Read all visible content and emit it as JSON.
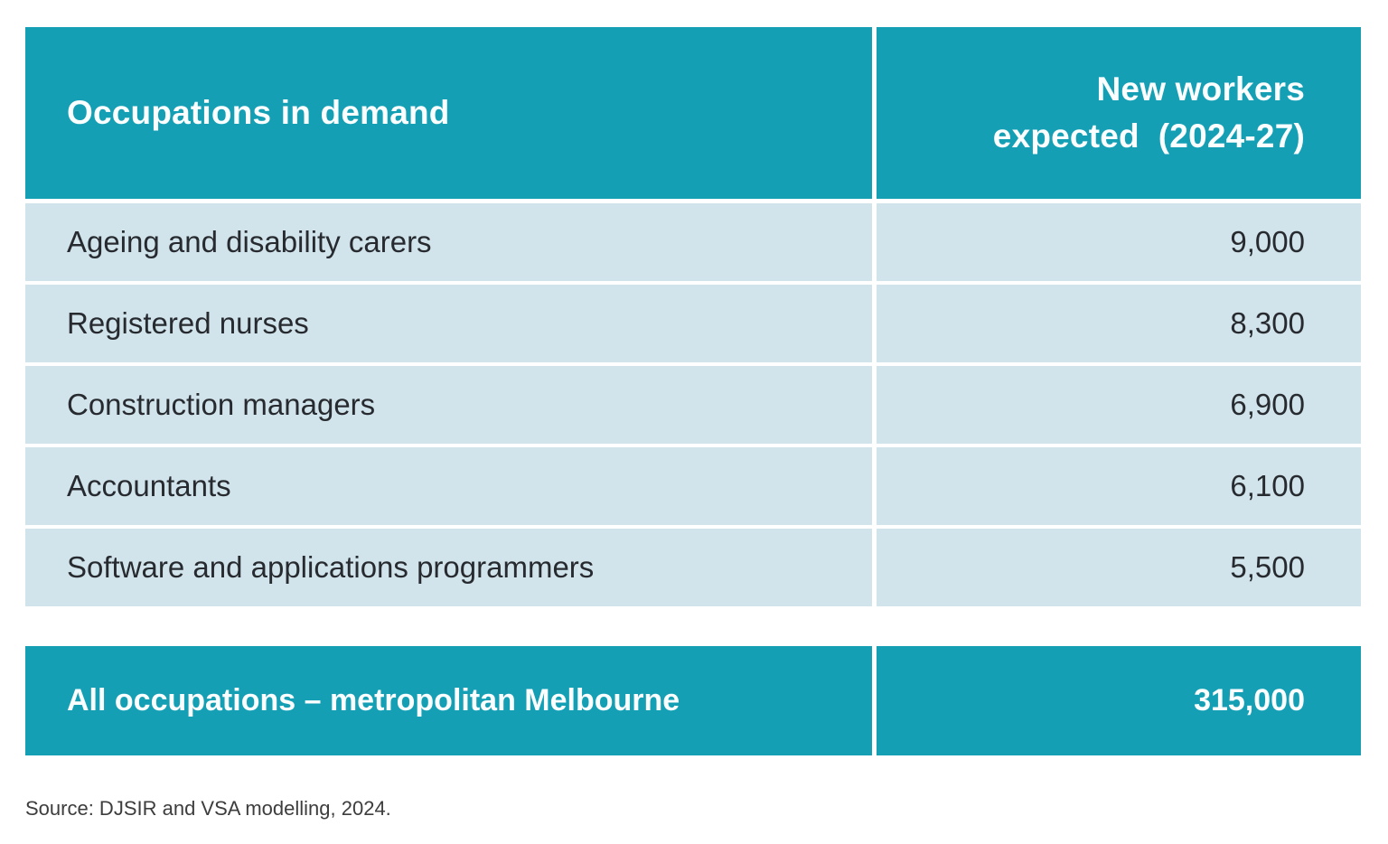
{
  "table": {
    "header": {
      "col1": "Occupations in demand",
      "col2_line1": "New workers",
      "col2_line2": "expected  (2024-27)"
    },
    "rows": [
      {
        "occupation": "Ageing and disability carers",
        "value": "9,000"
      },
      {
        "occupation": "Registered nurses",
        "value": "8,300"
      },
      {
        "occupation": "Construction managers",
        "value": "6,900"
      },
      {
        "occupation": "Accountants",
        "value": "6,100"
      },
      {
        "occupation": "Software and applications programmers",
        "value": "5,500"
      }
    ],
    "total": {
      "label": "All occupations – metropolitan Melbourne",
      "value": "315,000"
    }
  },
  "source": "Source: DJSIR and VSA modelling, 2024.",
  "colors": {
    "teal": "#149FB5",
    "light_blue": "#D2E4EB",
    "text_dark": "#272B30",
    "header_text": "#FAFEFE",
    "source_text": "#3D3D3D",
    "page_bg": "#FFFFFF"
  },
  "chart_data": {
    "type": "table",
    "title": "",
    "columns": [
      "Occupations in demand",
      "New workers expected (2024-27)"
    ],
    "rows": [
      [
        "Ageing and disability carers",
        9000
      ],
      [
        "Registered nurses",
        8300
      ],
      [
        "Construction managers",
        6900
      ],
      [
        "Accountants",
        6100
      ],
      [
        "Software and applications programmers",
        5500
      ]
    ],
    "total_row": [
      "All occupations – metropolitan Melbourne",
      315000
    ],
    "source": "Source: DJSIR and VSA modelling, 2024."
  }
}
